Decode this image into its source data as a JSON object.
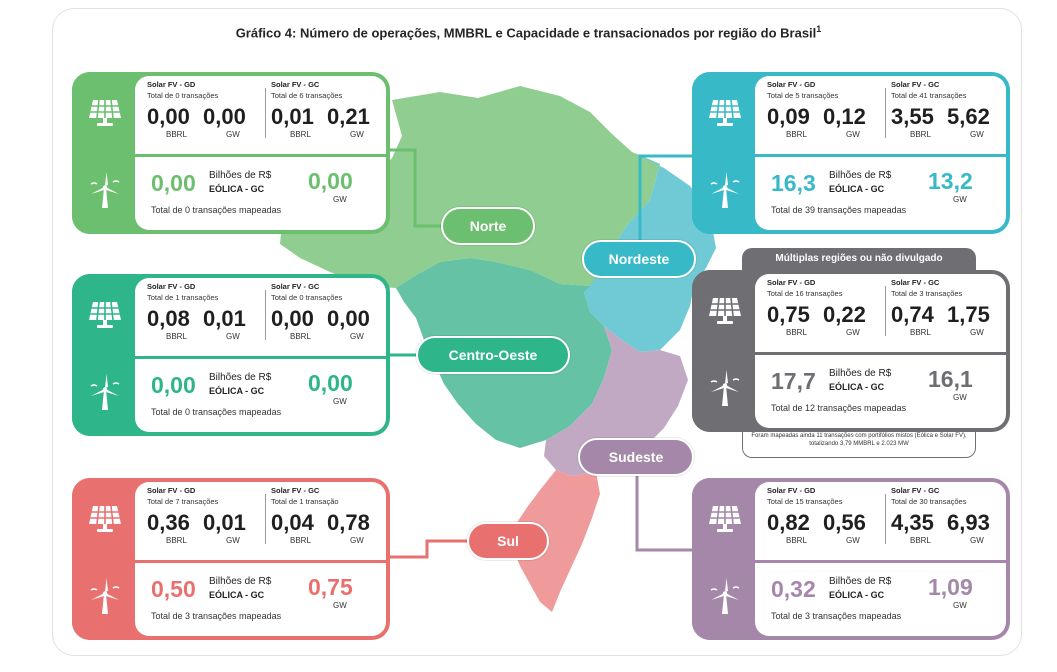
{
  "title": "Gráfico 4: Número de operações, MMBRL e Capacidade e transacionados por região do Brasil",
  "title_sup": "1",
  "labels": {
    "solar_gd": "Solar FV - GD",
    "solar_gc": "Solar FV - GC",
    "bbrl": "BBRL",
    "gw": "GW",
    "bilhoes": "Bilhões de R$",
    "eolica_gc": "EÓLICA - GC"
  },
  "colors": {
    "norte": "#6bbf6e",
    "centro_oeste": "#2fb58a",
    "sul": "#e8716f",
    "nordeste": "#38b9c7",
    "multiplas": "#6f6e73",
    "sudeste": "#a487a9"
  },
  "icons": {
    "solar": "solar-panel-icon",
    "wind": "wind-turbine-icon"
  },
  "regions": {
    "norte": {
      "pill": "Norte",
      "gd": {
        "count": "Total de 0 transações",
        "bbrl": "0,00",
        "gw": "0,00"
      },
      "gc": {
        "count": "Total de 6 transações",
        "bbrl": "0,01",
        "gw": "0,21"
      },
      "eolica": {
        "bbrl": "0,00",
        "gw": "0,00",
        "total": "Total de 0 transações mapeadas"
      }
    },
    "centro_oeste": {
      "pill": "Centro-Oeste",
      "gd": {
        "count": "Total de 1 transações",
        "bbrl": "0,08",
        "gw": "0,01"
      },
      "gc": {
        "count": "Total de 0 transações",
        "bbrl": "0,00",
        "gw": "0,00"
      },
      "eolica": {
        "bbrl": "0,00",
        "gw": "0,00",
        "total": "Total de 0 transações mapeadas"
      }
    },
    "sul": {
      "pill": "Sul",
      "gd": {
        "count": "Total de 7 transações",
        "bbrl": "0,36",
        "gw": "0,01"
      },
      "gc": {
        "count": "Total de 1 transação",
        "bbrl": "0,04",
        "gw": "0,78"
      },
      "eolica": {
        "bbrl": "0,50",
        "gw": "0,75",
        "total": "Total de 3 transações mapeadas"
      }
    },
    "nordeste": {
      "pill": "Nordeste",
      "gd": {
        "count": "Total de 5 transações",
        "bbrl": "0,09",
        "gw": "0,12"
      },
      "gc": {
        "count": "Total de 41 transações",
        "bbrl": "3,55",
        "gw": "5,62"
      },
      "eolica": {
        "bbrl": "16,3",
        "gw": "13,2",
        "total": "Total de 39 transações mapeadas"
      }
    },
    "multiplas": {
      "header": "Múltiplas regiões ou não divulgado",
      "gd": {
        "count": "Total de 16 transações",
        "bbrl": "0,75",
        "gw": "0,22"
      },
      "gc": {
        "count": "Total de 3 transações",
        "bbrl": "0,74",
        "gw": "1,75"
      },
      "eolica": {
        "bbrl": "17,7",
        "gw": "16,1",
        "total": "Total de 12 transações mapeadas"
      },
      "note": "Foram mapeadas ainda 11 transações com portifólios mistos (Eólica e Solar FV), totalizando 3,79 MMBRL e 2.023 MW"
    },
    "sudeste": {
      "pill": "Sudeste",
      "gd": {
        "count": "Total de 15 transações",
        "bbrl": "0,82",
        "gw": "0,56"
      },
      "gc": {
        "count": "Total de 30 transações",
        "bbrl": "4,35",
        "gw": "6,93"
      },
      "eolica": {
        "bbrl": "0,32",
        "gw": "1,09",
        "total": "Total de 3 transações mapeadas"
      }
    }
  }
}
